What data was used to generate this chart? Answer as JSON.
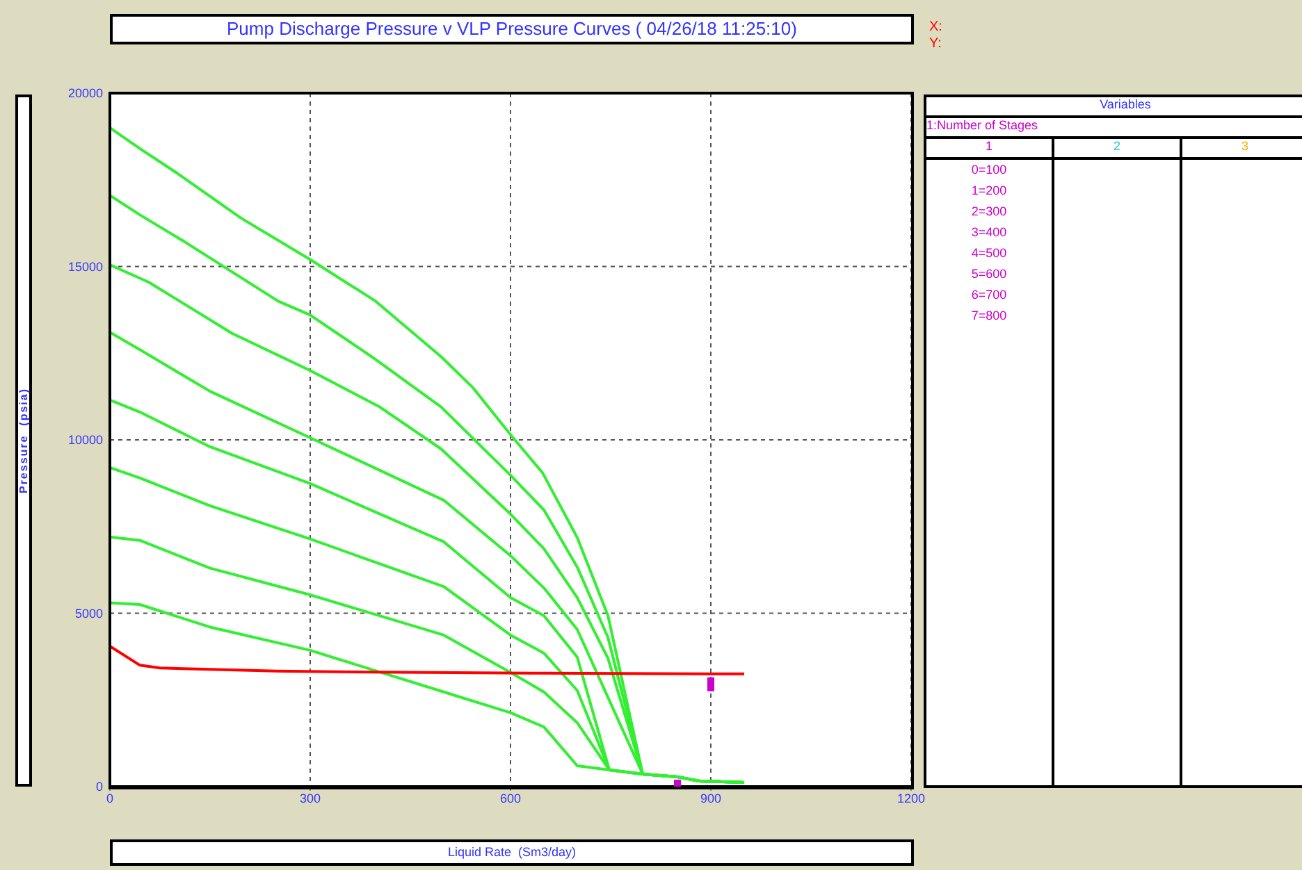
{
  "chart_data": {
    "type": "line",
    "title": "Pump Discharge Pressure v VLP Pressure Curves ( 04/26/18 11:25:10)",
    "xlabel": "Liquid Rate  (Sm3/day)",
    "ylabel": "Pressure  (psia)",
    "xlim": [
      0,
      1200
    ],
    "xticks": [
      0,
      300,
      600,
      900,
      1200
    ],
    "ylim": [
      0,
      20000
    ],
    "yticks": [
      0,
      5000,
      10000,
      15000,
      20000
    ],
    "grid": true,
    "marker": "none",
    "line_style": "solid",
    "annotations": [
      "X:",
      "Y:",
      "Variables",
      "1:Number of Stages",
      "1",
      "2",
      "3",
      "0=100",
      "1=200",
      "2=300",
      "3=400",
      "4=500",
      "5=600",
      "6=700",
      "7=800"
    ],
    "series": [
      {
        "color": "#33ee33",
        "x": [
          0,
          45,
          100,
          196,
          300,
          398,
          496,
          544,
          600,
          648,
          700,
          746,
          798,
          850,
          883,
          950
        ],
        "values": [
          19000,
          18400,
          17700,
          16400,
          15200,
          14000,
          12400,
          11500,
          10150,
          9050,
          7180,
          4930,
          360,
          280,
          160,
          120
        ]
      },
      {
        "color": "#33ee33",
        "x": [
          0,
          44,
          113,
          252,
          300,
          392,
          496,
          600,
          650,
          700,
          746,
          798,
          850,
          883,
          950
        ],
        "values": [
          17050,
          16500,
          15700,
          14000,
          13600,
          12400,
          10950,
          8980,
          7980,
          6330,
          4300,
          360,
          280,
          160,
          120
        ]
      },
      {
        "color": "#33ee33",
        "x": [
          0,
          58,
          183,
          300,
          404,
          496,
          600,
          650,
          700,
          746,
          798,
          850,
          883,
          950
        ],
        "values": [
          15050,
          14550,
          13070,
          12000,
          10950,
          9740,
          7860,
          6860,
          5450,
          3700,
          360,
          280,
          160,
          120
        ]
      },
      {
        "color": "#33ee33",
        "x": [
          0,
          45,
          150,
          300,
          500,
          600,
          650,
          700,
          798,
          850,
          883,
          950
        ],
        "values": [
          13100,
          12600,
          11400,
          10060,
          8260,
          6660,
          5730,
          4530,
          360,
          280,
          160,
          120
        ]
      },
      {
        "color": "#33ee33",
        "x": [
          0,
          45,
          150,
          300,
          500,
          600,
          650,
          700,
          748,
          798,
          850,
          883,
          950
        ],
        "values": [
          11150,
          10800,
          9800,
          8740,
          7060,
          5450,
          4930,
          3730,
          480,
          360,
          280,
          160,
          120
        ]
      },
      {
        "color": "#33ee33",
        "x": [
          0,
          45,
          150,
          300,
          500,
          600,
          650,
          700,
          748,
          798,
          850,
          883,
          950
        ],
        "values": [
          9200,
          8900,
          8100,
          7140,
          5770,
          4370,
          3850,
          2770,
          480,
          360,
          280,
          160,
          120
        ]
      },
      {
        "color": "#33ee33",
        "x": [
          0,
          45,
          150,
          300,
          500,
          600,
          650,
          700,
          748,
          798,
          850,
          883,
          950
        ],
        "values": [
          7200,
          7100,
          6300,
          5530,
          4370,
          3290,
          2730,
          1840,
          480,
          360,
          280,
          160,
          120
        ]
      },
      {
        "color": "#33ee33",
        "x": [
          0,
          45,
          150,
          300,
          500,
          600,
          650,
          700,
          748,
          798,
          850,
          883,
          950
        ],
        "values": [
          5300,
          5250,
          4600,
          3930,
          2730,
          2130,
          1720,
          600,
          480,
          360,
          280,
          160,
          120
        ]
      },
      {
        "color": "#ff0000",
        "x": [
          0,
          45,
          75,
          150,
          250,
          400,
          650,
          950
        ],
        "values": [
          4050,
          3500,
          3420,
          3380,
          3330,
          3300,
          3270,
          3250
        ]
      },
      {
        "type": "scatter",
        "marker": "square",
        "color": "#cc00cc",
        "x": [
          900,
          850
        ],
        "values": [
          2950,
          0
        ]
      }
    ]
  }
}
